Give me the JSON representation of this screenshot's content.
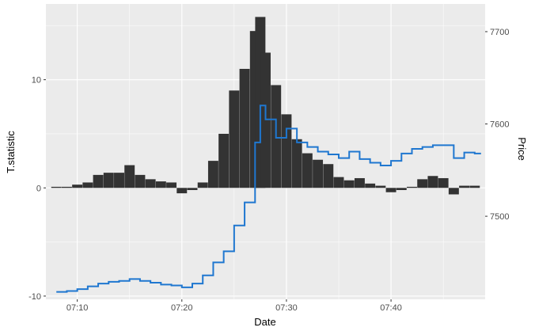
{
  "chart_data": {
    "type": "bar+line",
    "xlabel": "Date",
    "ylabel_left": "T.statistic",
    "ylabel_right": "Price",
    "x_range": [
      "07:07",
      "07:49"
    ],
    "x_ticks": [
      "07:10",
      "07:20",
      "07:30",
      "07:40"
    ],
    "y_left_range": [
      -10.3,
      17
    ],
    "y_left_ticks": [
      -10,
      0,
      10
    ],
    "y_right_range": [
      7410,
      7730
    ],
    "y_right_ticks": [
      7500,
      7600,
      7700
    ],
    "grid": true,
    "colors": {
      "bars": "#333333",
      "line": "#1f77d0",
      "panel": "#ebebeb",
      "grid": "#ffffff"
    },
    "series": [
      {
        "name": "T.statistic",
        "type": "bar",
        "axis": "left",
        "x": [
          "07:08",
          "07:09",
          "07:10",
          "07:11",
          "07:12",
          "07:13",
          "07:14",
          "07:15",
          "07:16",
          "07:17",
          "07:18",
          "07:19",
          "07:20",
          "07:21",
          "07:22",
          "07:23",
          "07:24",
          "07:25",
          "07:26",
          "07:27",
          "07:27.5",
          "07:28",
          "07:29",
          "07:30",
          "07:31",
          "07:32",
          "07:33",
          "07:34",
          "07:35",
          "07:36",
          "07:37",
          "07:38",
          "07:39",
          "07:40",
          "07:41",
          "07:42",
          "07:43",
          "07:44",
          "07:45",
          "07:46",
          "07:47",
          "07:48"
        ],
        "values": [
          0.1,
          0.1,
          0.3,
          0.5,
          1.2,
          1.4,
          1.4,
          2.1,
          1.2,
          0.8,
          0.6,
          0.5,
          -0.5,
          -0.2,
          0.5,
          2.5,
          5.0,
          9.0,
          11.0,
          14.5,
          15.8,
          12.5,
          9.5,
          6.8,
          4.5,
          3.2,
          2.6,
          2.2,
          1.0,
          0.7,
          0.9,
          0.4,
          0.2,
          -0.4,
          -0.2,
          0.1,
          0.8,
          1.1,
          0.9,
          -0.6,
          0.2,
          0.2
        ]
      },
      {
        "name": "Price",
        "type": "line",
        "axis": "right",
        "x": [
          "07:08",
          "07:09",
          "07:10",
          "07:11",
          "07:12",
          "07:13",
          "07:14",
          "07:15",
          "07:16",
          "07:17",
          "07:18",
          "07:19",
          "07:20",
          "07:21",
          "07:22",
          "07:23",
          "07:24",
          "07:25",
          "07:26",
          "07:27",
          "07:27.5",
          "07:28",
          "07:29",
          "07:30",
          "07:31",
          "07:32",
          "07:33",
          "07:34",
          "07:35",
          "07:36",
          "07:37",
          "07:38",
          "07:39",
          "07:40",
          "07:41",
          "07:42",
          "07:43",
          "07:44",
          "07:45",
          "07:46",
          "07:47",
          "07:48"
        ],
        "values": [
          7418,
          7419,
          7421,
          7424,
          7427,
          7429,
          7430,
          7432,
          7430,
          7428,
          7426,
          7425,
          7423,
          7427,
          7436,
          7450,
          7462,
          7490,
          7515,
          7580,
          7620,
          7605,
          7585,
          7595,
          7580,
          7575,
          7570,
          7567,
          7563,
          7570,
          7562,
          7558,
          7555,
          7560,
          7568,
          7573,
          7575,
          7577,
          7577,
          7563,
          7569,
          7568
        ]
      }
    ]
  }
}
